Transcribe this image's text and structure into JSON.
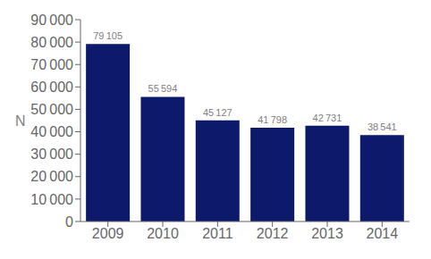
{
  "chart_data": {
    "type": "bar",
    "ylabel": "N",
    "categories": [
      "2009",
      "2010",
      "2011",
      "2012",
      "2013",
      "2014"
    ],
    "values": [
      79105,
      55594,
      45127,
      41798,
      42731,
      38541
    ],
    "value_labels": [
      "79 105",
      "55 594",
      "45 127",
      "41 798",
      "42 731",
      "38 541"
    ],
    "data_labels": true,
    "color": "#0D1A6B",
    "ylim": [
      0,
      90000
    ],
    "yticks": [
      0,
      {
        "value": 10000,
        "label": "10 000"
      },
      {
        "value": 20000,
        "label": "20 000"
      },
      {
        "value": 30000,
        "label": "30 000"
      },
      {
        "value": 40000,
        "label": "40 000"
      },
      {
        "value": 50000,
        "label": "50 000"
      },
      {
        "value": 60000,
        "label": "60 000"
      },
      {
        "value": 70000,
        "label": "70 000"
      },
      {
        "value": 80000,
        "label": "80 000"
      },
      {
        "value": 90000,
        "label": "90 000"
      }
    ],
    "grid": false
  }
}
